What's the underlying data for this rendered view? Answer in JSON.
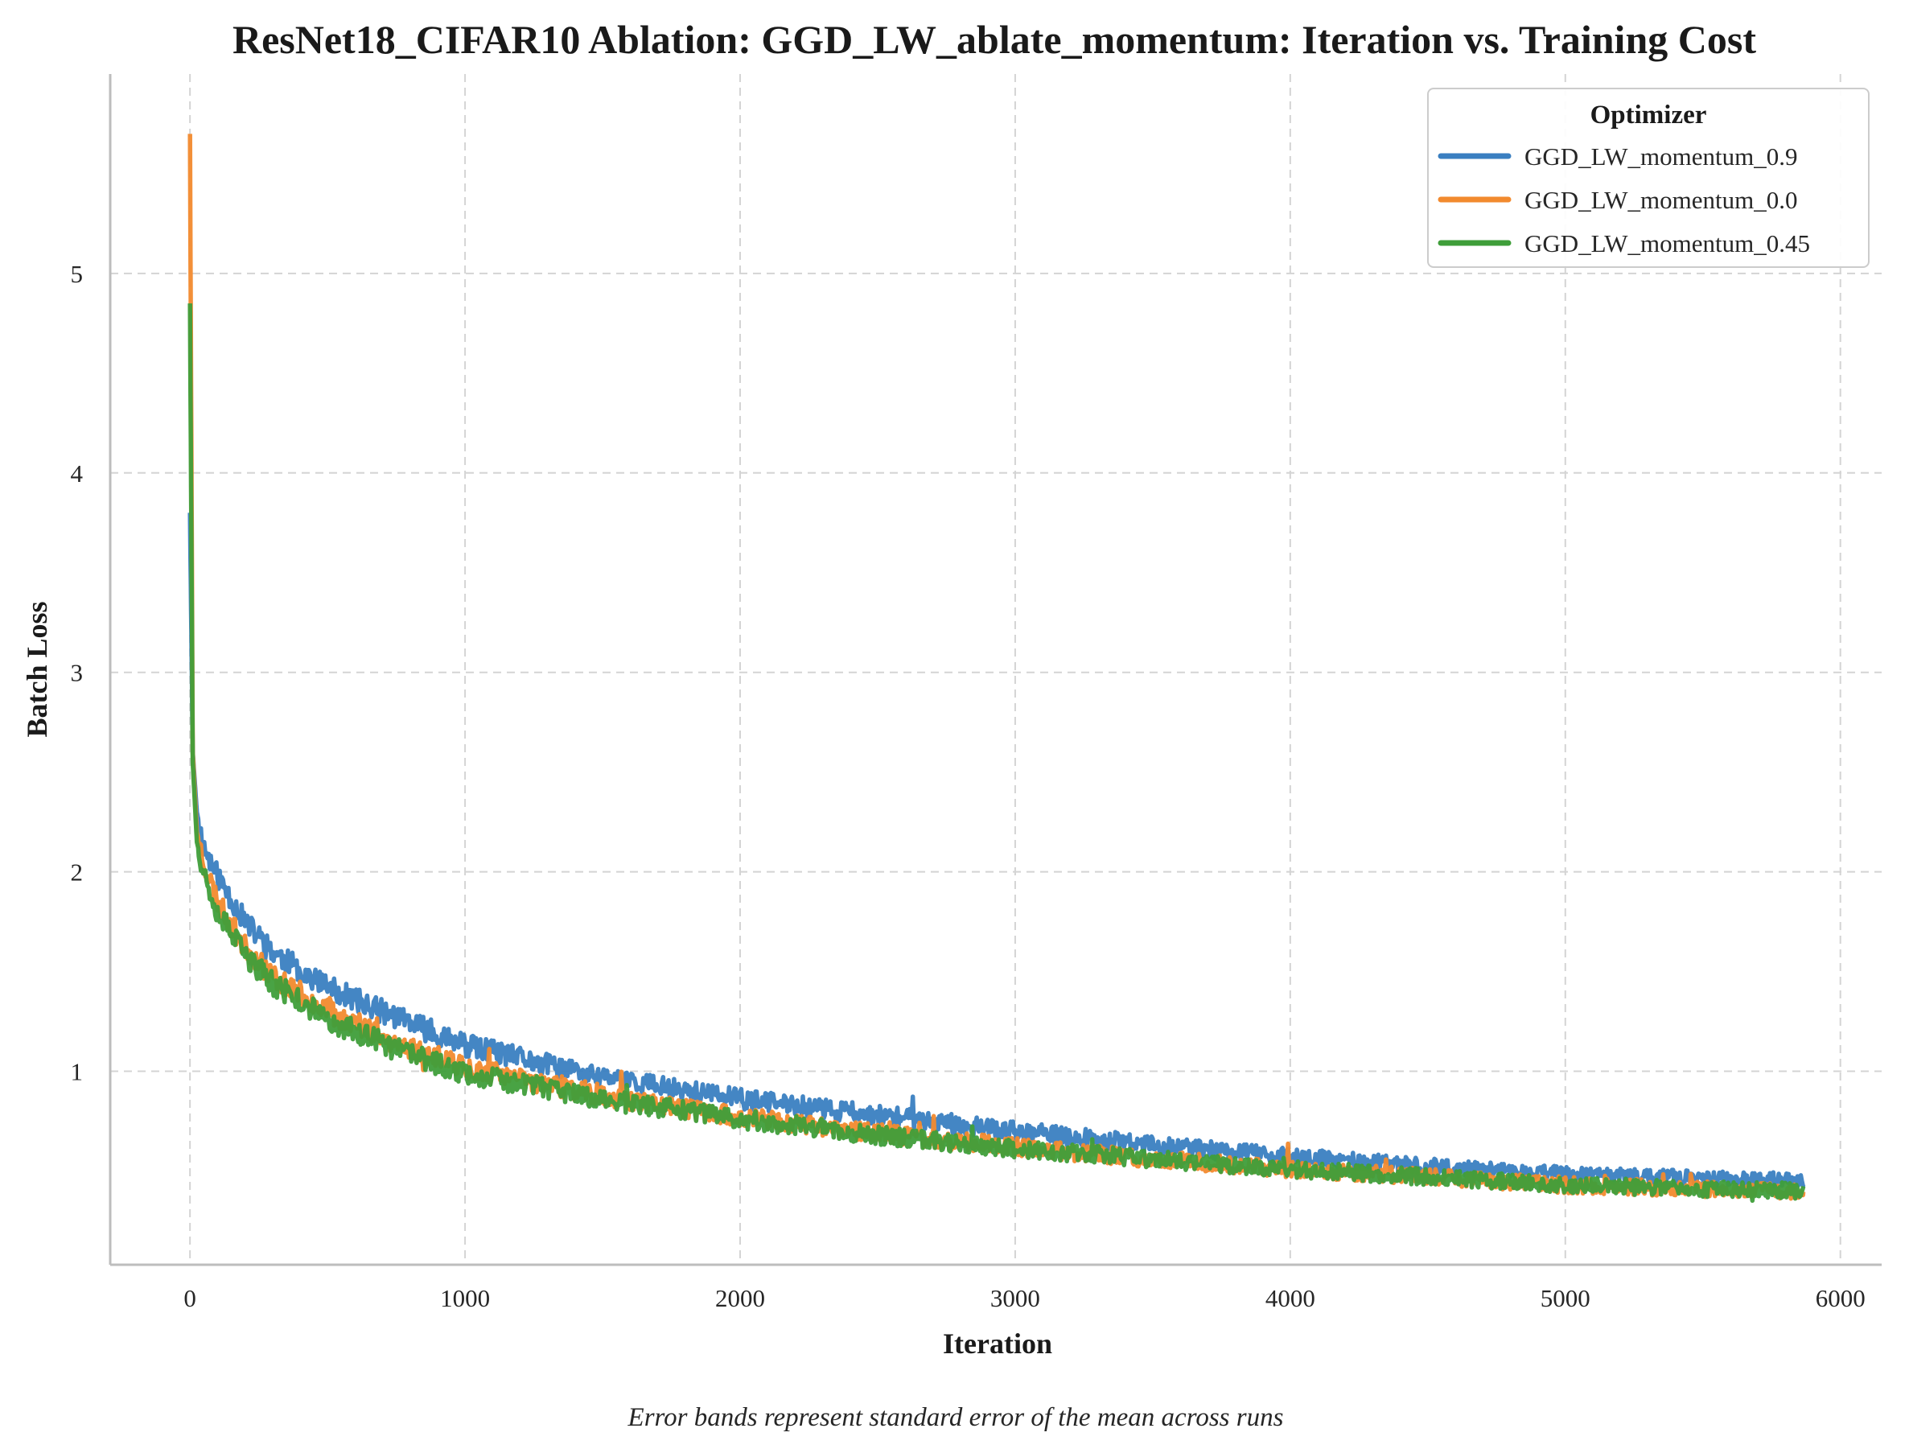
{
  "chart_data": {
    "type": "line",
    "title": "ResNet18_CIFAR10 Ablation: GGD_LW_ablate_momentum: Iteration vs. Training Cost",
    "xlabel": "Iteration",
    "ylabel": "Batch Loss",
    "caption": "Error bands represent standard error of the mean across runs",
    "xlim": [
      -290,
      6150
    ],
    "ylim": [
      0.03,
      6.0
    ],
    "xticks": [
      0,
      1000,
      2000,
      3000,
      4000,
      5000,
      6000
    ],
    "yticks": [
      1,
      2,
      3,
      4,
      5
    ],
    "grid": true,
    "legend": {
      "title": "Optimizer",
      "position": "top-right"
    },
    "series": [
      {
        "name": "GGD_LW_momentum_0.9",
        "color": "#3a7fc1",
        "x": [
          0,
          10,
          25,
          50,
          100,
          200,
          300,
          500,
          750,
          1000,
          1500,
          2000,
          2500,
          3000,
          3500,
          4000,
          4500,
          5000,
          5500,
          5865
        ],
        "y": [
          3.8,
          2.6,
          2.3,
          2.12,
          1.98,
          1.75,
          1.6,
          1.42,
          1.27,
          1.13,
          0.97,
          0.86,
          0.78,
          0.7,
          0.63,
          0.57,
          0.52,
          0.48,
          0.46,
          0.45
        ],
        "noise": 0.05
      },
      {
        "name": "GGD_LW_momentum_0.0",
        "color": "#f28a2e",
        "x": [
          0,
          10,
          25,
          50,
          100,
          200,
          300,
          500,
          750,
          1000,
          1500,
          2000,
          2500,
          3000,
          3500,
          4000,
          4500,
          5000,
          5500,
          5865
        ],
        "y": [
          5.7,
          2.6,
          2.2,
          2.05,
          1.85,
          1.62,
          1.48,
          1.3,
          1.14,
          1.02,
          0.88,
          0.77,
          0.69,
          0.62,
          0.56,
          0.51,
          0.47,
          0.43,
          0.41,
          0.4
        ],
        "noise": 0.05
      },
      {
        "name": "GGD_LW_momentum_0.45",
        "color": "#3f9e3a",
        "x": [
          0,
          10,
          25,
          50,
          100,
          200,
          300,
          500,
          750,
          1000,
          1500,
          2000,
          2500,
          3000,
          3500,
          4000,
          4500,
          5000,
          5500,
          5865
        ],
        "y": [
          4.85,
          2.55,
          2.15,
          2.0,
          1.8,
          1.58,
          1.44,
          1.26,
          1.11,
          0.99,
          0.86,
          0.76,
          0.68,
          0.61,
          0.56,
          0.51,
          0.47,
          0.43,
          0.41,
          0.4
        ],
        "noise": 0.05
      }
    ]
  }
}
